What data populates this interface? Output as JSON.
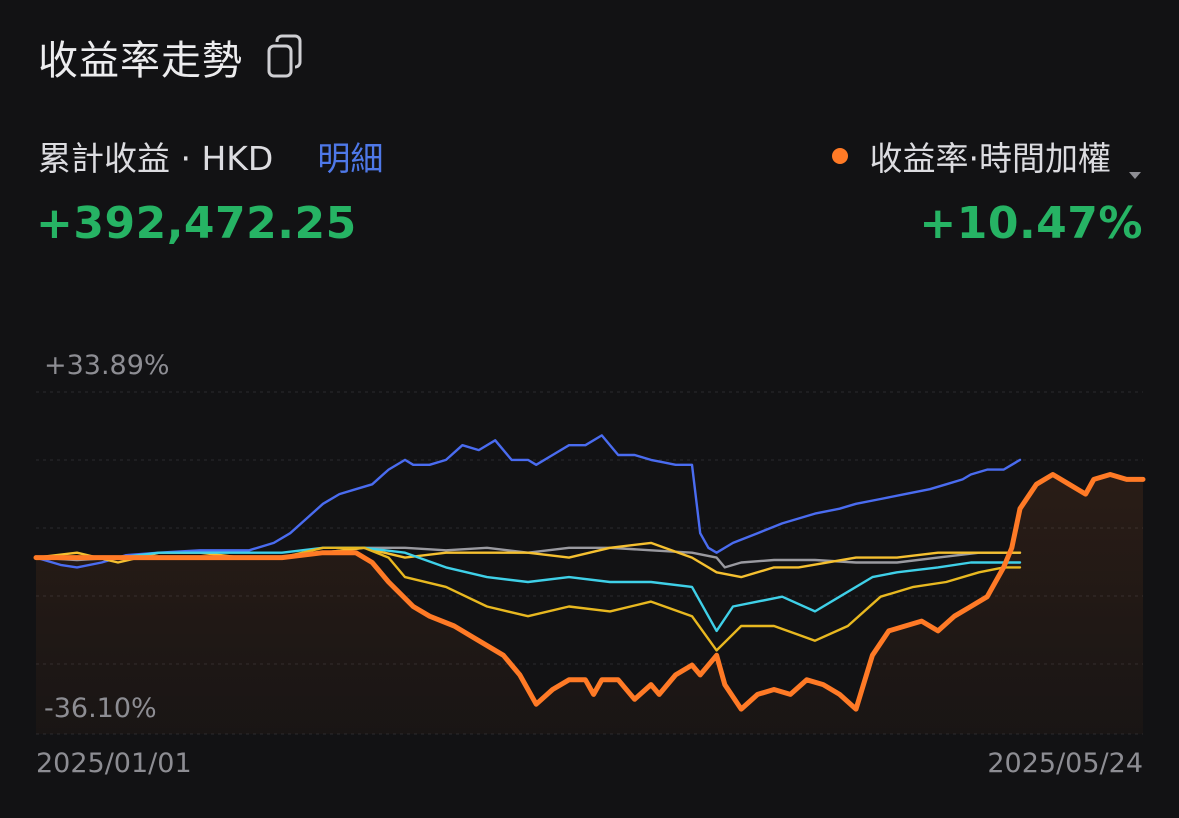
{
  "header": {
    "title": "收益率走勢",
    "copy_icon": "copy-icon"
  },
  "summary": {
    "cumulative_label": "累計收益 · HKD",
    "detail_link": "明細",
    "rate_selector_label": "收益率·時間加權",
    "cumulative_value": "+392,472.25",
    "rate_value": "+10.47%"
  },
  "colors": {
    "positive": "#26b364",
    "link": "#4e78e8",
    "primary_series": "#ff7a26"
  },
  "chart_data": {
    "type": "line",
    "y_tick_labels": {
      "max": "+33.89%",
      "min": "-36.10%"
    },
    "x_tick_labels": {
      "start": "2025/01/01",
      "end": "2025/05/24"
    },
    "ylim": [
      -36.1,
      33.89
    ],
    "x_range": [
      "2025/01/01",
      "2025/05/24"
    ],
    "grid": true,
    "series": [
      {
        "color": "#4a6cf0",
        "style": "thin",
        "points": [
          [
            0,
            0
          ],
          [
            6,
            -1.5
          ],
          [
            10,
            -2
          ],
          [
            16,
            -1
          ],
          [
            22,
            0.5
          ],
          [
            30,
            1
          ],
          [
            40,
            1.5
          ],
          [
            52,
            1.5
          ],
          [
            58,
            3
          ],
          [
            62,
            5
          ],
          [
            66,
            8
          ],
          [
            70,
            11
          ],
          [
            74,
            13
          ],
          [
            78,
            14
          ],
          [
            82,
            15
          ],
          [
            86,
            18
          ],
          [
            90,
            20
          ],
          [
            92,
            19
          ],
          [
            96,
            19
          ],
          [
            100,
            20
          ],
          [
            104,
            23
          ],
          [
            108,
            22
          ],
          [
            112,
            24
          ],
          [
            116,
            20
          ],
          [
            120,
            20
          ],
          [
            122,
            19
          ],
          [
            126,
            21
          ],
          [
            130,
            23
          ],
          [
            134,
            23
          ],
          [
            138,
            25
          ],
          [
            142,
            21
          ],
          [
            146,
            21
          ],
          [
            150,
            20
          ],
          [
            153,
            19.5
          ],
          [
            156,
            19
          ],
          [
            160,
            19
          ],
          [
            162,
            5
          ],
          [
            164,
            2
          ],
          [
            166,
            1
          ],
          [
            170,
            3
          ],
          [
            176,
            5
          ],
          [
            182,
            7
          ],
          [
            186,
            8
          ],
          [
            190,
            9
          ],
          [
            196,
            10
          ],
          [
            200,
            11
          ],
          [
            206,
            12
          ],
          [
            212,
            13
          ],
          [
            218,
            14
          ],
          [
            222,
            15
          ],
          [
            226,
            16
          ],
          [
            228,
            17
          ],
          [
            232,
            18
          ],
          [
            236,
            18
          ],
          [
            240,
            20
          ]
        ]
      },
      {
        "color": "#9a9aa0",
        "style": "thin",
        "points": [
          [
            0,
            0
          ],
          [
            10,
            -0.5
          ],
          [
            20,
            0
          ],
          [
            30,
            0
          ],
          [
            40,
            0
          ],
          [
            50,
            0
          ],
          [
            60,
            0
          ],
          [
            70,
            1
          ],
          [
            80,
            2
          ],
          [
            90,
            2
          ],
          [
            100,
            1.5
          ],
          [
            110,
            2
          ],
          [
            120,
            1
          ],
          [
            130,
            2
          ],
          [
            140,
            2
          ],
          [
            150,
            1.5
          ],
          [
            160,
            1
          ],
          [
            166,
            0
          ],
          [
            168,
            -2
          ],
          [
            172,
            -1
          ],
          [
            180,
            -0.5
          ],
          [
            190,
            -0.5
          ],
          [
            200,
            -1
          ],
          [
            210,
            -1
          ],
          [
            220,
            0
          ],
          [
            230,
            1
          ],
          [
            240,
            1
          ]
        ]
      },
      {
        "color": "#f5c030",
        "style": "thin",
        "points": [
          [
            0,
            0
          ],
          [
            10,
            1
          ],
          [
            20,
            -1
          ],
          [
            30,
            1
          ],
          [
            40,
            1
          ],
          [
            50,
            0
          ],
          [
            60,
            0
          ],
          [
            70,
            1
          ],
          [
            80,
            2
          ],
          [
            90,
            0
          ],
          [
            100,
            1
          ],
          [
            110,
            1
          ],
          [
            120,
            1
          ],
          [
            130,
            0
          ],
          [
            140,
            2
          ],
          [
            150,
            3
          ],
          [
            160,
            0
          ],
          [
            166,
            -3
          ],
          [
            172,
            -4
          ],
          [
            180,
            -2
          ],
          [
            186,
            -2
          ],
          [
            200,
            0
          ],
          [
            210,
            0
          ],
          [
            220,
            1
          ],
          [
            230,
            1
          ],
          [
            240,
            1
          ]
        ]
      },
      {
        "color": "#3fd0e8",
        "style": "thin",
        "points": [
          [
            0,
            0
          ],
          [
            10,
            0
          ],
          [
            20,
            0
          ],
          [
            30,
            1
          ],
          [
            40,
            1
          ],
          [
            50,
            1
          ],
          [
            60,
            1
          ],
          [
            70,
            2
          ],
          [
            80,
            2
          ],
          [
            90,
            1
          ],
          [
            100,
            -2
          ],
          [
            110,
            -4
          ],
          [
            120,
            -5
          ],
          [
            130,
            -4
          ],
          [
            140,
            -5
          ],
          [
            150,
            -5
          ],
          [
            160,
            -6
          ],
          [
            166,
            -15
          ],
          [
            170,
            -10
          ],
          [
            176,
            -9
          ],
          [
            182,
            -8
          ],
          [
            190,
            -11
          ],
          [
            196,
            -8
          ],
          [
            204,
            -4
          ],
          [
            210,
            -3
          ],
          [
            220,
            -2
          ],
          [
            228,
            -1
          ],
          [
            236,
            -1
          ],
          [
            240,
            -1
          ]
        ]
      },
      {
        "color": "#e8b820",
        "style": "thin",
        "points": [
          [
            0,
            0
          ],
          [
            10,
            0
          ],
          [
            20,
            0
          ],
          [
            30,
            0
          ],
          [
            40,
            0
          ],
          [
            50,
            0
          ],
          [
            60,
            0
          ],
          [
            70,
            2
          ],
          [
            80,
            2
          ],
          [
            86,
            0
          ],
          [
            90,
            -4
          ],
          [
            100,
            -6
          ],
          [
            110,
            -10
          ],
          [
            120,
            -12
          ],
          [
            130,
            -10
          ],
          [
            140,
            -11
          ],
          [
            150,
            -9
          ],
          [
            160,
            -12
          ],
          [
            166,
            -19
          ],
          [
            172,
            -14
          ],
          [
            180,
            -14
          ],
          [
            190,
            -17
          ],
          [
            198,
            -14
          ],
          [
            206,
            -8
          ],
          [
            214,
            -6
          ],
          [
            222,
            -5
          ],
          [
            230,
            -3
          ],
          [
            236,
            -2
          ],
          [
            240,
            -2
          ]
        ]
      },
      {
        "color": "#ff7a26",
        "style": "thick",
        "points": [
          [
            0,
            0
          ],
          [
            20,
            0
          ],
          [
            40,
            0
          ],
          [
            60,
            0
          ],
          [
            70,
            1
          ],
          [
            78,
            1
          ],
          [
            82,
            -1
          ],
          [
            86,
            -5
          ],
          [
            92,
            -10
          ],
          [
            96,
            -12
          ],
          [
            102,
            -14
          ],
          [
            108,
            -17
          ],
          [
            114,
            -20
          ],
          [
            118,
            -24
          ],
          [
            122,
            -30
          ],
          [
            126,
            -27
          ],
          [
            130,
            -25
          ],
          [
            134,
            -25
          ],
          [
            136,
            -28
          ],
          [
            138,
            -25
          ],
          [
            142,
            -25
          ],
          [
            146,
            -29
          ],
          [
            150,
            -26
          ],
          [
            152,
            -28
          ],
          [
            156,
            -24
          ],
          [
            160,
            -22
          ],
          [
            162,
            -24
          ],
          [
            166,
            -20
          ],
          [
            168,
            -26
          ],
          [
            172,
            -31
          ],
          [
            176,
            -28
          ],
          [
            180,
            -27
          ],
          [
            184,
            -28
          ],
          [
            188,
            -25
          ],
          [
            192,
            -26
          ],
          [
            196,
            -28
          ],
          [
            200,
            -31
          ],
          [
            204,
            -20
          ],
          [
            208,
            -15
          ],
          [
            212,
            -14
          ],
          [
            216,
            -13
          ],
          [
            220,
            -15
          ],
          [
            224,
            -12
          ],
          [
            228,
            -10
          ],
          [
            232,
            -8
          ],
          [
            236,
            -2
          ],
          [
            238,
            2
          ],
          [
            240,
            10
          ],
          [
            244,
            15
          ],
          [
            248,
            17
          ],
          [
            252,
            15
          ],
          [
            256,
            13
          ],
          [
            258,
            16
          ],
          [
            262,
            17
          ],
          [
            266,
            16
          ],
          [
            270,
            16
          ]
        ]
      }
    ]
  }
}
